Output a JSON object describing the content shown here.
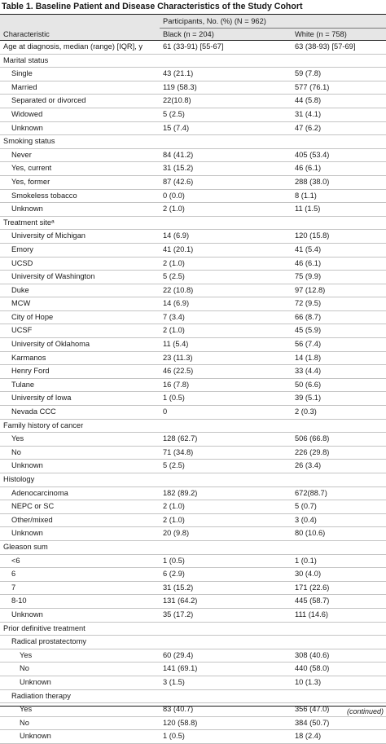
{
  "title": "Table 1. Baseline Patient and Disease Characteristics of the Study Cohort",
  "header": {
    "characteristic": "Characteristic",
    "participants": "Participants, No. (%) (N = 962)",
    "black": "Black (n = 204)",
    "white": "White (n = 758)"
  },
  "rows": [
    {
      "label": "Age at diagnosis, median (range) [IQR], y",
      "black": "61 (33-91) [55-67]",
      "white": "63 (38-93) [57-69]",
      "level": 0
    },
    {
      "label": "Marital status",
      "black": "",
      "white": "",
      "level": 0
    },
    {
      "label": "Single",
      "black": "43 (21.1)",
      "white": "59 (7.8)",
      "level": 1
    },
    {
      "label": "Married",
      "black": "119 (58.3)",
      "white": "577 (76.1)",
      "level": 1
    },
    {
      "label": "Separated or divorced",
      "black": "22(10.8)",
      "white": "44 (5.8)",
      "level": 1
    },
    {
      "label": "Widowed",
      "black": "5 (2.5)",
      "white": "31 (4.1)",
      "level": 1
    },
    {
      "label": "Unknown",
      "black": "15 (7.4)",
      "white": "47 (6.2)",
      "level": 1
    },
    {
      "label": "Smoking status",
      "black": "",
      "white": "",
      "level": 0
    },
    {
      "label": "Never",
      "black": "84 (41.2)",
      "white": "405 (53.4)",
      "level": 1
    },
    {
      "label": "Yes, current",
      "black": "31 (15.2)",
      "white": "46 (6.1)",
      "level": 1
    },
    {
      "label": "Yes, former",
      "black": "87 (42.6)",
      "white": "288 (38.0)",
      "level": 1
    },
    {
      "label": "Smokeless tobacco",
      "black": "0 (0.0)",
      "white": "8 (1.1)",
      "level": 1
    },
    {
      "label": "Unknown",
      "black": "2 (1.0)",
      "white": "11 (1.5)",
      "level": 1
    },
    {
      "label": "Treatment siteᵃ",
      "black": "",
      "white": "",
      "level": 0
    },
    {
      "label": "University of Michigan",
      "black": "14 (6.9)",
      "white": "120 (15.8)",
      "level": 1
    },
    {
      "label": "Emory",
      "black": "41 (20.1)",
      "white": "41 (5.4)",
      "level": 1
    },
    {
      "label": "UCSD",
      "black": "2 (1.0)",
      "white": "46 (6.1)",
      "level": 1
    },
    {
      "label": "University of Washington",
      "black": "5 (2.5)",
      "white": "75 (9.9)",
      "level": 1
    },
    {
      "label": "Duke",
      "black": "22 (10.8)",
      "white": "97 (12.8)",
      "level": 1
    },
    {
      "label": "MCW",
      "black": "14 (6.9)",
      "white": "72 (9.5)",
      "level": 1
    },
    {
      "label": "City of Hope",
      "black": "7 (3.4)",
      "white": "66 (8.7)",
      "level": 1
    },
    {
      "label": "UCSF",
      "black": "2 (1.0)",
      "white": "45 (5.9)",
      "level": 1
    },
    {
      "label": "University of Oklahoma",
      "black": "11 (5.4)",
      "white": "56 (7.4)",
      "level": 1
    },
    {
      "label": "Karmanos",
      "black": "23 (11.3)",
      "white": "14 (1.8)",
      "level": 1
    },
    {
      "label": "Henry Ford",
      "black": "46 (22.5)",
      "white": "33 (4.4)",
      "level": 1
    },
    {
      "label": "Tulane",
      "black": "16 (7.8)",
      "white": "50 (6.6)",
      "level": 1
    },
    {
      "label": "University of Iowa",
      "black": "1 (0.5)",
      "white": "39 (5.1)",
      "level": 1
    },
    {
      "label": "Nevada CCC",
      "black": "0",
      "white": "2 (0.3)",
      "level": 1
    },
    {
      "label": "Family history of cancer",
      "black": "",
      "white": "",
      "level": 0
    },
    {
      "label": "Yes",
      "black": "128 (62.7)",
      "white": "506 (66.8)",
      "level": 1
    },
    {
      "label": "No",
      "black": "71 (34.8)",
      "white": "226 (29.8)",
      "level": 1
    },
    {
      "label": "Unknown",
      "black": "5 (2.5)",
      "white": "26 (3.4)",
      "level": 1
    },
    {
      "label": "Histology",
      "black": "",
      "white": "",
      "level": 0
    },
    {
      "label": "Adenocarcinoma",
      "black": "182 (89.2)",
      "white": "672(88.7)",
      "level": 1
    },
    {
      "label": "NEPC or SC",
      "black": "2 (1.0)",
      "white": "5 (0.7)",
      "level": 1
    },
    {
      "label": "Other/mixed",
      "black": "2 (1.0)",
      "white": "3 (0.4)",
      "level": 1
    },
    {
      "label": "Unknown",
      "black": "20 (9.8)",
      "white": "80 (10.6)",
      "level": 1
    },
    {
      "label": "Gleason sum",
      "black": "",
      "white": "",
      "level": 0
    },
    {
      "label": "<6",
      "black": "1 (0.5)",
      "white": "1 (0.1)",
      "level": 1
    },
    {
      "label": "6",
      "black": "6 (2.9)",
      "white": "30 (4.0)",
      "level": 1
    },
    {
      "label": "7",
      "black": "31 (15.2)",
      "white": "171 (22.6)",
      "level": 1
    },
    {
      "label": "8-10",
      "black": "131 (64.2)",
      "white": "445 (58.7)",
      "level": 1
    },
    {
      "label": "Unknown",
      "black": "35 (17.2)",
      "white": "111 (14.6)",
      "level": 1
    },
    {
      "label": "Prior definitive treatment",
      "black": "",
      "white": "",
      "level": 0
    },
    {
      "label": "Radical prostatectomy",
      "black": "",
      "white": "",
      "level": 1
    },
    {
      "label": "Yes",
      "black": "60 (29.4)",
      "white": "308 (40.6)",
      "level": 2
    },
    {
      "label": "No",
      "black": "141 (69.1)",
      "white": "440 (58.0)",
      "level": 2
    },
    {
      "label": "Unknown",
      "black": "3 (1.5)",
      "white": "10 (1.3)",
      "level": 2
    },
    {
      "label": "Radiation therapy",
      "black": "",
      "white": "",
      "level": 1
    },
    {
      "label": "Yes",
      "black": "83 (40.7)",
      "white": "356 (47.0)",
      "level": 2
    },
    {
      "label": "No",
      "black": "120 (58.8)",
      "white": "384 (50.7)",
      "level": 2
    },
    {
      "label": "Unknown",
      "black": "1 (0.5)",
      "white": "18 (2.4)",
      "level": 2
    }
  ],
  "footer": {
    "continued": "(continued)"
  },
  "colors": {
    "header_shade": "#e6e6e6",
    "rule": "#1a1a1a"
  }
}
